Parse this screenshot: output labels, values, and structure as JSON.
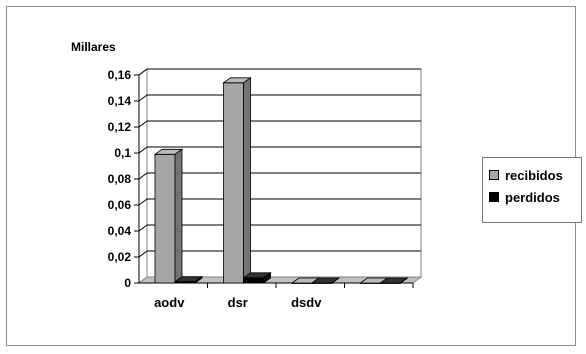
{
  "chart_data": {
    "type": "bar",
    "style": "3d-clustered-column",
    "units_label": "Millares",
    "categories": [
      "aodv",
      "dsr",
      "dsdv",
      ""
    ],
    "series": [
      {
        "name": "recibidos",
        "values": [
          0.099,
          0.154,
          0,
          0
        ],
        "color": "#a6a6a6"
      },
      {
        "name": "perdidos",
        "values": [
          0.001,
          0.004,
          0,
          0
        ],
        "color": "#000000"
      }
    ],
    "y_ticks": [
      "0",
      "0,02",
      "0,04",
      "0,06",
      "0,08",
      "0,1",
      "0,12",
      "0,14",
      "0,16"
    ],
    "ylim": [
      0,
      0.16
    ],
    "grid": true,
    "legend_position": "right"
  }
}
